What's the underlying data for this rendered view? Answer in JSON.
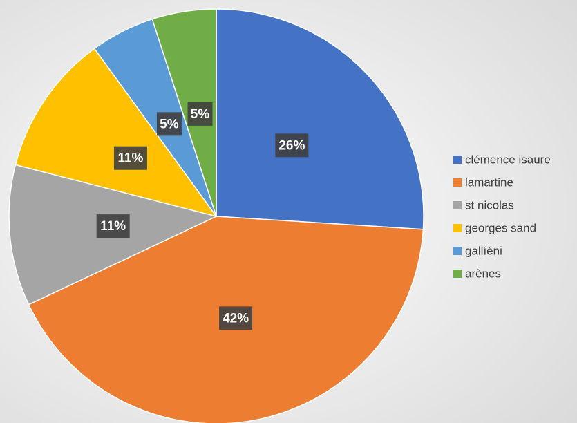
{
  "chart_data": {
    "type": "pie",
    "categories": [
      "clémence isaure",
      "lamartine",
      "st nicolas",
      "georges sand",
      "gallíéni",
      "arènes"
    ],
    "values": [
      26,
      42,
      11,
      11,
      5,
      5
    ],
    "value_labels": [
      "26%",
      "42%",
      "11%",
      "11%",
      "5%",
      "5%"
    ],
    "colors": [
      "#4472c4",
      "#ed7d31",
      "#a5a5a5",
      "#ffc000",
      "#5b9bd5",
      "#70ad47"
    ],
    "legend": "right"
  }
}
